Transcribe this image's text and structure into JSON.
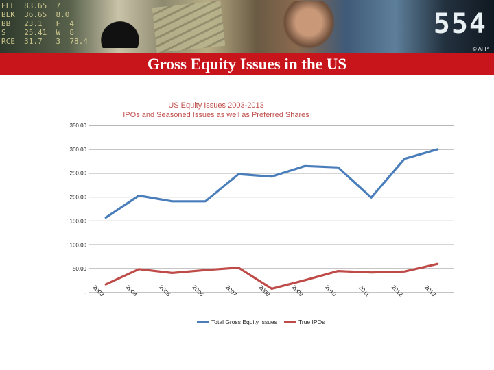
{
  "header": {
    "ticker_text": "ELL  83.65  7  \nBLK  36.65  8.0\nBB   23.1   F  4\nS    25.41  W  8\nRCE  31.7   3  78.4",
    "banner_digits": "554",
    "banner_credit": "© AFP",
    "slide_title": "Gross Equity Issues in the US"
  },
  "chart_data": {
    "type": "line",
    "title": "US Equity Issues  2003-2013",
    "subtitle": "IPOs and Seasoned Issues as well as Preferred Shares",
    "categories": [
      "2003",
      "2004",
      "2005",
      "2006",
      "2007",
      "2008",
      "2009",
      "2010",
      "2011",
      "2012",
      "2013"
    ],
    "series": [
      {
        "name": "Total Gross Equity Issues",
        "color": "#4a7ebb",
        "values": [
          157,
          203,
          191,
          191,
          248,
          243,
          265,
          262,
          199,
          280,
          300
        ]
      },
      {
        "name": "True IPOs",
        "color": "#be4b48",
        "values": [
          17,
          49,
          41,
          47,
          52,
          8,
          26,
          45,
          42,
          44,
          60
        ]
      }
    ],
    "y_ticks": [
      "-",
      "50.00",
      "100.00",
      "150.00",
      "200.00",
      "250.00",
      "300.00",
      "350.00"
    ],
    "ylim": [
      0,
      350
    ],
    "grid": true,
    "legend_position": "bottom"
  }
}
